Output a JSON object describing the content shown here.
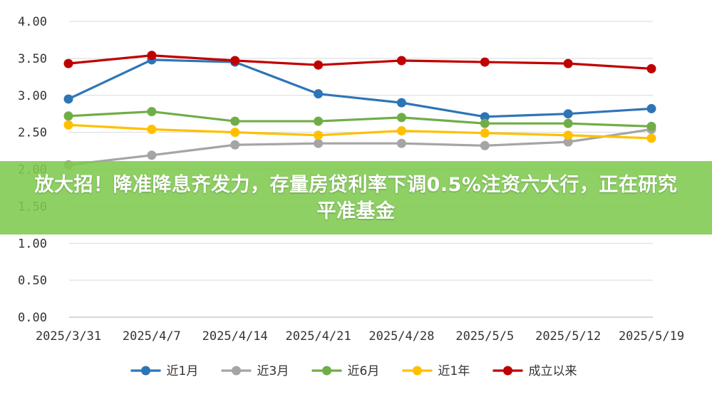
{
  "banner": {
    "headline": "放大招！降准降息齐发力，存量房贷利率下调0.5%注资六大行，正在研究平准基金"
  },
  "chart_data": {
    "type": "line",
    "title": "",
    "xlabel": "",
    "ylabel": "",
    "categories": [
      "2025/3/31",
      "2025/4/7",
      "2025/4/14",
      "2025/4/21",
      "2025/4/28",
      "2025/5/5",
      "2025/5/12",
      "2025/5/19"
    ],
    "y_ticks": [
      "4.00",
      "3.50",
      "3.00",
      "2.50",
      "2.00",
      "1.50",
      "1.00",
      "0.50",
      "0.00"
    ],
    "ylim": [
      0,
      4
    ],
    "grid": true,
    "legend_position": "bottom",
    "series": [
      {
        "name": "近1月",
        "color": "#2e75b6",
        "values": [
          2.95,
          3.48,
          3.45,
          3.02,
          2.9,
          2.71,
          2.75,
          2.82
        ]
      },
      {
        "name": "近3月",
        "color": "#a5a5a5",
        "values": [
          2.06,
          2.19,
          2.33,
          2.35,
          2.35,
          2.32,
          2.37,
          2.54
        ]
      },
      {
        "name": "近6月",
        "color": "#70ad47",
        "values": [
          2.72,
          2.78,
          2.65,
          2.65,
          2.7,
          2.62,
          2.62,
          2.58
        ]
      },
      {
        "name": "近1年",
        "color": "#ffc000",
        "values": [
          2.6,
          2.54,
          2.5,
          2.46,
          2.52,
          2.49,
          2.46,
          2.42
        ]
      },
      {
        "name": "成立以来",
        "color": "#c00000",
        "values": [
          3.43,
          3.54,
          3.47,
          3.41,
          3.47,
          3.45,
          3.43,
          3.36
        ]
      }
    ]
  }
}
